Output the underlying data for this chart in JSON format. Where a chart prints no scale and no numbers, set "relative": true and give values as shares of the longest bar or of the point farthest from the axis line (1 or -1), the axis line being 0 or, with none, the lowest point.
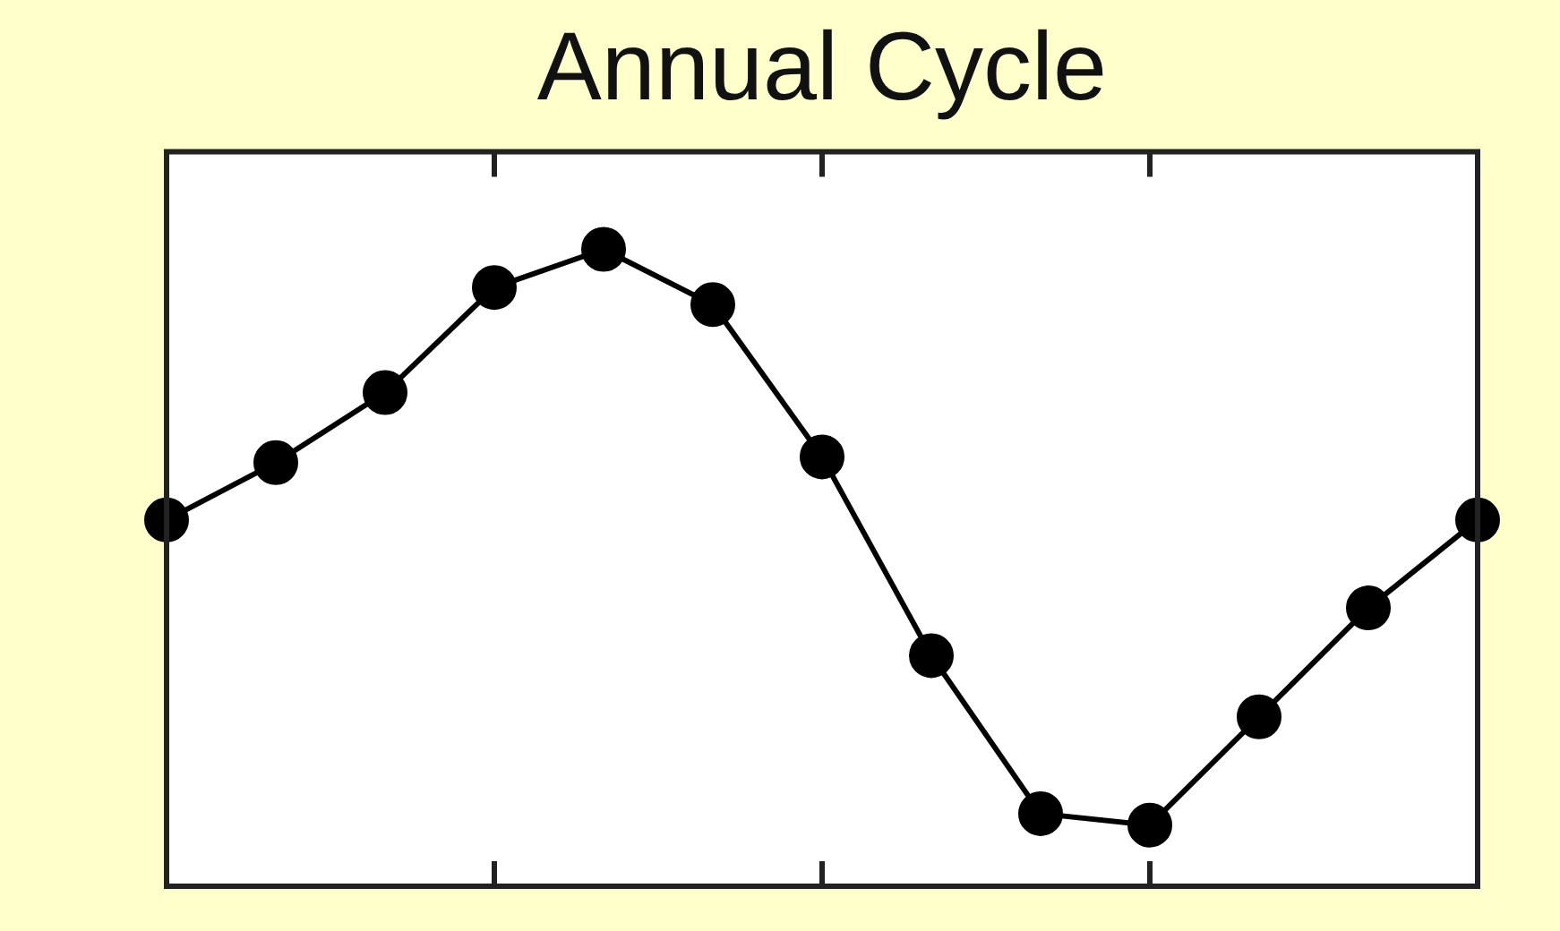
{
  "chart_data": {
    "type": "line",
    "title": "Annual Cycle",
    "relative": true,
    "categories": [
      null,
      null,
      null,
      null,
      null,
      null,
      null,
      null,
      null,
      null,
      null,
      null,
      null
    ],
    "series": [
      {
        "color": "#000000",
        "values": [
          0.575,
          0.665,
          0.775,
          0.94,
          1,
          0.913,
          0.674,
          0.362,
          0.114,
          0.096,
          0.266,
          0.437,
          0.575
        ]
      }
    ],
    "marker": "circle",
    "line_style": "solid",
    "grid": false,
    "legend": false,
    "tick_labels": false
  }
}
